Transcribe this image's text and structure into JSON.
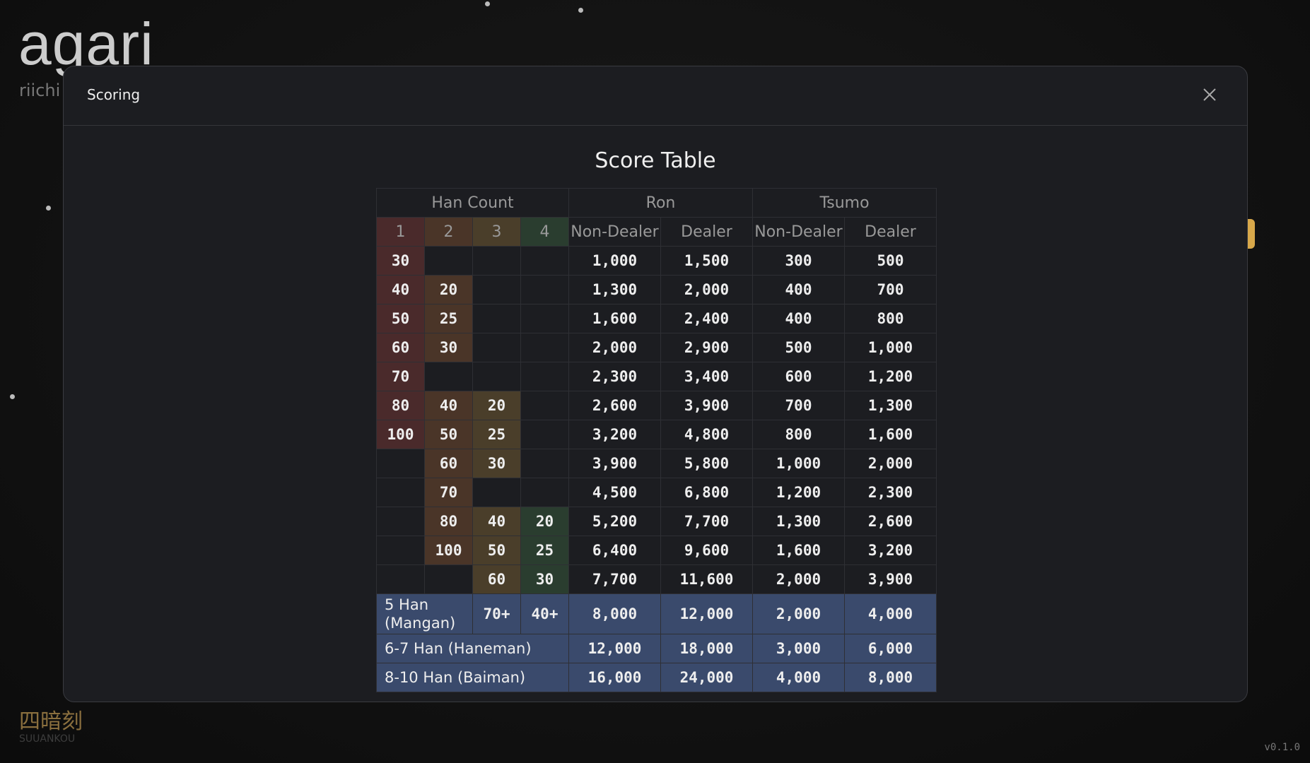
{
  "app": {
    "logo": "agari",
    "subtitle": "riichi",
    "yaku_kanji": "四暗刻",
    "yaku_romaji": "SUUANKOU",
    "version": "v0.1.0"
  },
  "modal": {
    "title": "Scoring",
    "heading": "Score Table"
  },
  "table": {
    "header": [
      "Han Count",
      "Ron",
      "Tsumo"
    ],
    "subheader": [
      "1",
      "2",
      "3",
      "4",
      "Non-Dealer",
      "Dealer",
      "Non-Dealer",
      "Dealer"
    ],
    "rows": [
      {
        "fu": [
          30,
          null,
          null,
          null
        ],
        "scores": [
          "1,000",
          "1,500",
          "300",
          "500"
        ]
      },
      {
        "fu": [
          40,
          20,
          null,
          null
        ],
        "scores": [
          "1,300",
          "2,000",
          "400",
          "700"
        ]
      },
      {
        "fu": [
          50,
          25,
          null,
          null
        ],
        "scores": [
          "1,600",
          "2,400",
          "400",
          "800"
        ]
      },
      {
        "fu": [
          60,
          30,
          null,
          null
        ],
        "scores": [
          "2,000",
          "2,900",
          "500",
          "1,000"
        ]
      },
      {
        "fu": [
          70,
          null,
          null,
          null
        ],
        "scores": [
          "2,300",
          "3,400",
          "600",
          "1,200"
        ]
      },
      {
        "fu": [
          80,
          40,
          20,
          null
        ],
        "scores": [
          "2,600",
          "3,900",
          "700",
          "1,300"
        ]
      },
      {
        "fu": [
          100,
          50,
          25,
          null
        ],
        "scores": [
          "3,200",
          "4,800",
          "800",
          "1,600"
        ]
      },
      {
        "fu": [
          null,
          60,
          30,
          null
        ],
        "scores": [
          "3,900",
          "5,800",
          "1,000",
          "2,000"
        ]
      },
      {
        "fu": [
          null,
          70,
          null,
          null
        ],
        "scores": [
          "4,500",
          "6,800",
          "1,200",
          "2,300"
        ]
      },
      {
        "fu": [
          null,
          80,
          40,
          20
        ],
        "scores": [
          "5,200",
          "7,700",
          "1,300",
          "2,600"
        ]
      },
      {
        "fu": [
          null,
          100,
          50,
          25
        ],
        "scores": [
          "6,400",
          "9,600",
          "1,600",
          "3,200"
        ]
      },
      {
        "fu": [
          null,
          null,
          60,
          30
        ],
        "scores": [
          "7,700",
          "11,600",
          "2,000",
          "3,900"
        ]
      }
    ],
    "limits": [
      {
        "label": "5 Han (Mangan)",
        "fu": [
          "70+",
          "40+"
        ],
        "scores": [
          "8,000",
          "12,000",
          "2,000",
          "4,000"
        ]
      },
      {
        "label": "6-7 Han (Haneman)",
        "scores": [
          "12,000",
          "18,000",
          "3,000",
          "6,000"
        ]
      },
      {
        "label": "8-10 Han (Baiman)",
        "scores": [
          "16,000",
          "24,000",
          "4,000",
          "8,000"
        ]
      }
    ]
  }
}
